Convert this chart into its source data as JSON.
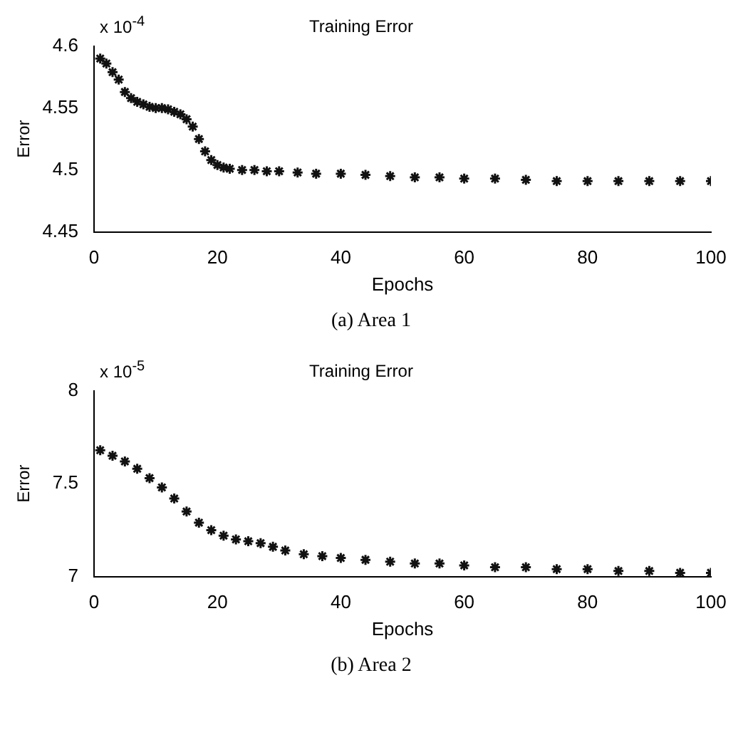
{
  "chart_data": [
    {
      "type": "scatter",
      "title": "Training Error",
      "xlabel": "Epochs",
      "ylabel": "Error",
      "marker": "cross",
      "grid": false,
      "legend": false,
      "annotations": [
        "x 10$^{-4}$",
        "(a) Area 1"
      ],
      "xlim": [
        0,
        100
      ],
      "xticks": [
        0,
        20,
        40,
        60,
        80,
        100
      ],
      "ylim": [
        4.45,
        4.6
      ],
      "yticks": [
        4.45,
        4.5,
        4.55,
        4.6
      ],
      "series": [
        {
          "color": "#111111",
          "x": [
            1,
            2,
            3,
            4,
            5,
            6,
            7,
            8,
            9,
            10,
            11,
            12,
            13,
            14,
            15,
            16,
            17,
            18,
            19,
            20,
            21,
            22,
            24,
            26,
            28,
            30,
            33,
            36,
            40,
            44,
            48,
            52,
            56,
            60,
            65,
            70,
            75,
            80,
            85,
            90,
            95,
            100
          ],
          "values": [
            4.59,
            4.586,
            4.579,
            4.573,
            4.563,
            4.558,
            4.555,
            4.553,
            4.551,
            4.55,
            4.55,
            4.549,
            4.547,
            4.545,
            4.541,
            4.535,
            4.525,
            4.515,
            4.508,
            4.504,
            4.502,
            4.501,
            4.5,
            4.5,
            4.499,
            4.499,
            4.498,
            4.497,
            4.497,
            4.496,
            4.495,
            4.494,
            4.494,
            4.493,
            4.493,
            4.492,
            4.491,
            4.491,
            4.491,
            4.491,
            4.491,
            4.491
          ]
        }
      ]
    },
    {
      "type": "scatter",
      "title": "Training Error",
      "xlabel": "Epochs",
      "ylabel": "Error",
      "marker": "cross",
      "grid": false,
      "legend": false,
      "annotations": [
        "x 10$^{-5}$",
        "(b) Area 2"
      ],
      "xlim": [
        0,
        100
      ],
      "xticks": [
        0,
        20,
        40,
        60,
        80,
        100
      ],
      "ylim": [
        7,
        8
      ],
      "yticks": [
        7,
        7.5,
        8
      ],
      "series": [
        {
          "color": "#111111",
          "x": [
            1,
            3,
            5,
            7,
            9,
            11,
            13,
            15,
            17,
            19,
            21,
            23,
            25,
            27,
            29,
            31,
            34,
            37,
            40,
            44,
            48,
            52,
            56,
            60,
            65,
            70,
            75,
            80,
            85,
            90,
            95,
            100
          ],
          "values": [
            7.68,
            7.65,
            7.62,
            7.58,
            7.53,
            7.48,
            7.42,
            7.35,
            7.29,
            7.25,
            7.22,
            7.2,
            7.19,
            7.18,
            7.16,
            7.14,
            7.12,
            7.11,
            7.1,
            7.09,
            7.08,
            7.07,
            7.07,
            7.06,
            7.05,
            7.05,
            7.04,
            7.04,
            7.03,
            7.03,
            7.02,
            7.02
          ]
        }
      ]
    }
  ]
}
